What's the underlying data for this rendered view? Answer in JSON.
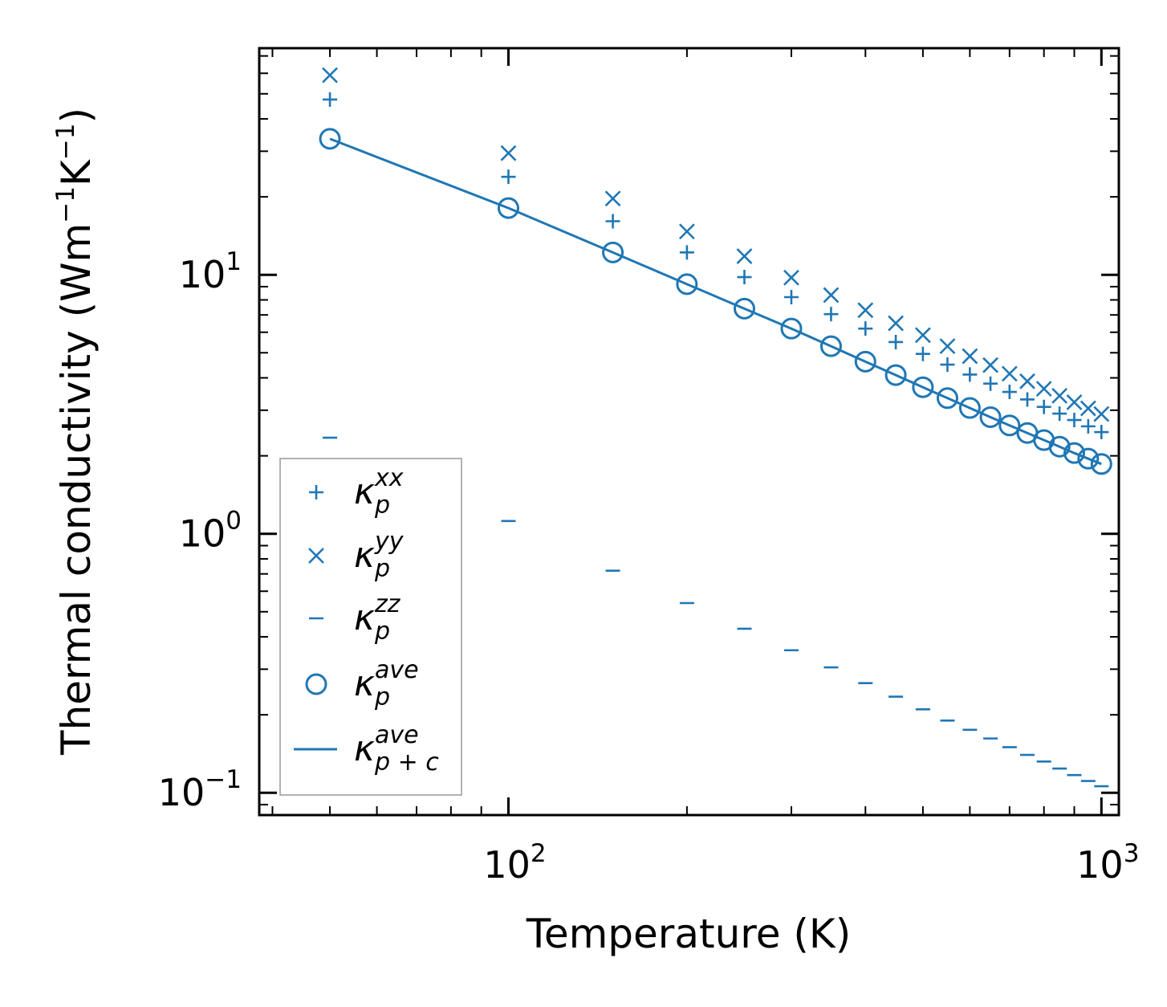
{
  "chart_data": {
    "type": "scatter",
    "x_scale": "log",
    "y_scale": "log",
    "xlabel": "Temperature (K)",
    "ylabel": "Thermal conductivity (Wm⁻¹K⁻¹)",
    "xlim": [
      38,
      1070
    ],
    "ylim": [
      0.082,
      75
    ],
    "x_ticks": [
      {
        "value": 100,
        "base": "10",
        "exp": "2"
      },
      {
        "value": 1000,
        "base": "10",
        "exp": "3"
      }
    ],
    "y_ticks": [
      {
        "value": 0.1,
        "base": "10",
        "exp": "−1"
      },
      {
        "value": 1,
        "base": "10",
        "exp": "0"
      },
      {
        "value": 10,
        "base": "10",
        "exp": "1"
      }
    ],
    "ylabel_parts": {
      "main": "Thermal conductivity (Wm",
      "exp1": "−1",
      "mid": "K",
      "exp2": "−1",
      "end": ")"
    },
    "color": "#1f77b4",
    "x": [
      50,
      100,
      150,
      200,
      250,
      300,
      350,
      400,
      450,
      500,
      550,
      600,
      650,
      700,
      750,
      800,
      850,
      900,
      950,
      1000
    ],
    "series": [
      {
        "name": "kappa_p_xx",
        "marker": "plus",
        "values": [
          47.5,
          23.9,
          16.1,
          12.2,
          9.8,
          8.2,
          7.05,
          6.2,
          5.5,
          4.95,
          4.5,
          4.12,
          3.8,
          3.53,
          3.3,
          3.09,
          2.91,
          2.75,
          2.6,
          2.47
        ]
      },
      {
        "name": "kappa_p_yy",
        "marker": "x",
        "values": [
          59.0,
          29.5,
          19.7,
          14.7,
          11.8,
          9.75,
          8.35,
          7.3,
          6.5,
          5.85,
          5.3,
          4.85,
          4.48,
          4.15,
          3.88,
          3.63,
          3.41,
          3.22,
          3.05,
          2.9
        ]
      },
      {
        "name": "kappa_p_zz",
        "marker": "dash",
        "values": [
          2.35,
          1.12,
          0.72,
          0.54,
          0.43,
          0.355,
          0.305,
          0.265,
          0.235,
          0.21,
          0.19,
          0.175,
          0.162,
          0.15,
          0.14,
          0.132,
          0.124,
          0.117,
          0.111,
          0.106
        ]
      },
      {
        "name": "kappa_p_ave",
        "marker": "circle",
        "values": [
          33.5,
          18.1,
          12.2,
          9.2,
          7.4,
          6.2,
          5.3,
          4.62,
          4.1,
          3.68,
          3.34,
          3.06,
          2.82,
          2.62,
          2.45,
          2.3,
          2.17,
          2.05,
          1.95,
          1.86
        ]
      },
      {
        "name": "kappa_pc_ave",
        "marker": "line",
        "values": [
          33.5,
          18.1,
          12.2,
          9.2,
          7.4,
          6.2,
          5.3,
          4.62,
          4.1,
          3.68,
          3.34,
          3.06,
          2.82,
          2.62,
          2.45,
          2.3,
          2.17,
          2.05,
          1.95,
          1.86
        ]
      }
    ],
    "legend": {
      "placement": "lower-left",
      "entries": [
        {
          "symbol": "κ",
          "sub": "p",
          "sup": "xx",
          "marker": "plus"
        },
        {
          "symbol": "κ",
          "sub": "p",
          "sup": "yy",
          "marker": "x"
        },
        {
          "symbol": "κ",
          "sub": "p",
          "sup": "zz",
          "marker": "dash"
        },
        {
          "symbol": "κ",
          "sub": "p",
          "sup": "ave",
          "marker": "circle"
        },
        {
          "symbol": "κ",
          "sub": "p + c",
          "sup": "ave",
          "marker": "line"
        }
      ]
    }
  }
}
